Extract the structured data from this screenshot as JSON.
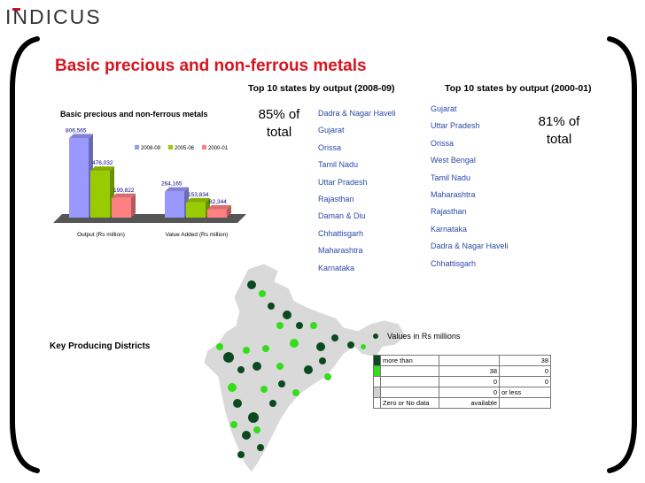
{
  "logo": {
    "text": "INDICUS"
  },
  "title": "Basic precious and non-ferrous metals",
  "header_2008": "Top 10 states by output (2008-09)",
  "header_2000": "Top 10 states by output (2000-01)",
  "pct_2008": {
    "value": "85% of",
    "label": "total"
  },
  "pct_2000": {
    "value": "81% of",
    "label": "total"
  },
  "states_2008": [
    "Dadra & Nagar Haveli",
    "Gujarat",
    "Orissa",
    "Tamil Nadu",
    "Uttar Pradesh",
    "Rajasthan",
    "Daman & Diu",
    "Chhattisgarh",
    "Maharashtra",
    "Karnataka"
  ],
  "states_2000": [
    "Gujarat",
    "Uttar Pradesh",
    "Orissa",
    "West Bengal",
    "Tamil Nadu",
    "Maharashtra",
    "Rajasthan",
    "Karnataka",
    "Dadra & Nagar Haveli",
    "Chhattisgarh"
  ],
  "key_label": "Key Producing Districts",
  "map_legend": {
    "title": "Values in Rs millions",
    "rows": [
      {
        "color": "#0b4a1e",
        "label": "more than",
        "v1": "",
        "v2": "38"
      },
      {
        "color": "#33dd1a",
        "label": "",
        "v1": "38",
        "v2": "0"
      },
      {
        "color": "#ffffff",
        "label": "",
        "v1": "0",
        "v2": "0"
      },
      {
        "color": "#d0d0d0",
        "label": "",
        "v1": "0",
        "v2": "or less"
      },
      {
        "color": "#ffffff",
        "label": "Zero or No data",
        "v1": "available",
        "v2": ""
      }
    ]
  },
  "chart_data": {
    "type": "bar",
    "title": "Basic precious and non-ferrous metals",
    "categories": [
      "Output (Rs million)",
      "Value Added (Rs million)"
    ],
    "series": [
      {
        "name": "2008-09",
        "color": "#9999ff",
        "values": [
          806565,
          264165
        ]
      },
      {
        "name": "2005-06",
        "color": "#99cc00",
        "values": [
          476032,
          153834
        ]
      },
      {
        "name": "2000-01",
        "color": "#ff8080",
        "values": [
          199822,
          82344
        ]
      }
    ],
    "data_labels": [
      [
        "806,565",
        "476,032",
        "199,822"
      ],
      [
        "264,165",
        "153,834",
        "82,344"
      ]
    ],
    "ylim": [
      0,
      900000
    ],
    "legend_position": "top-right"
  }
}
